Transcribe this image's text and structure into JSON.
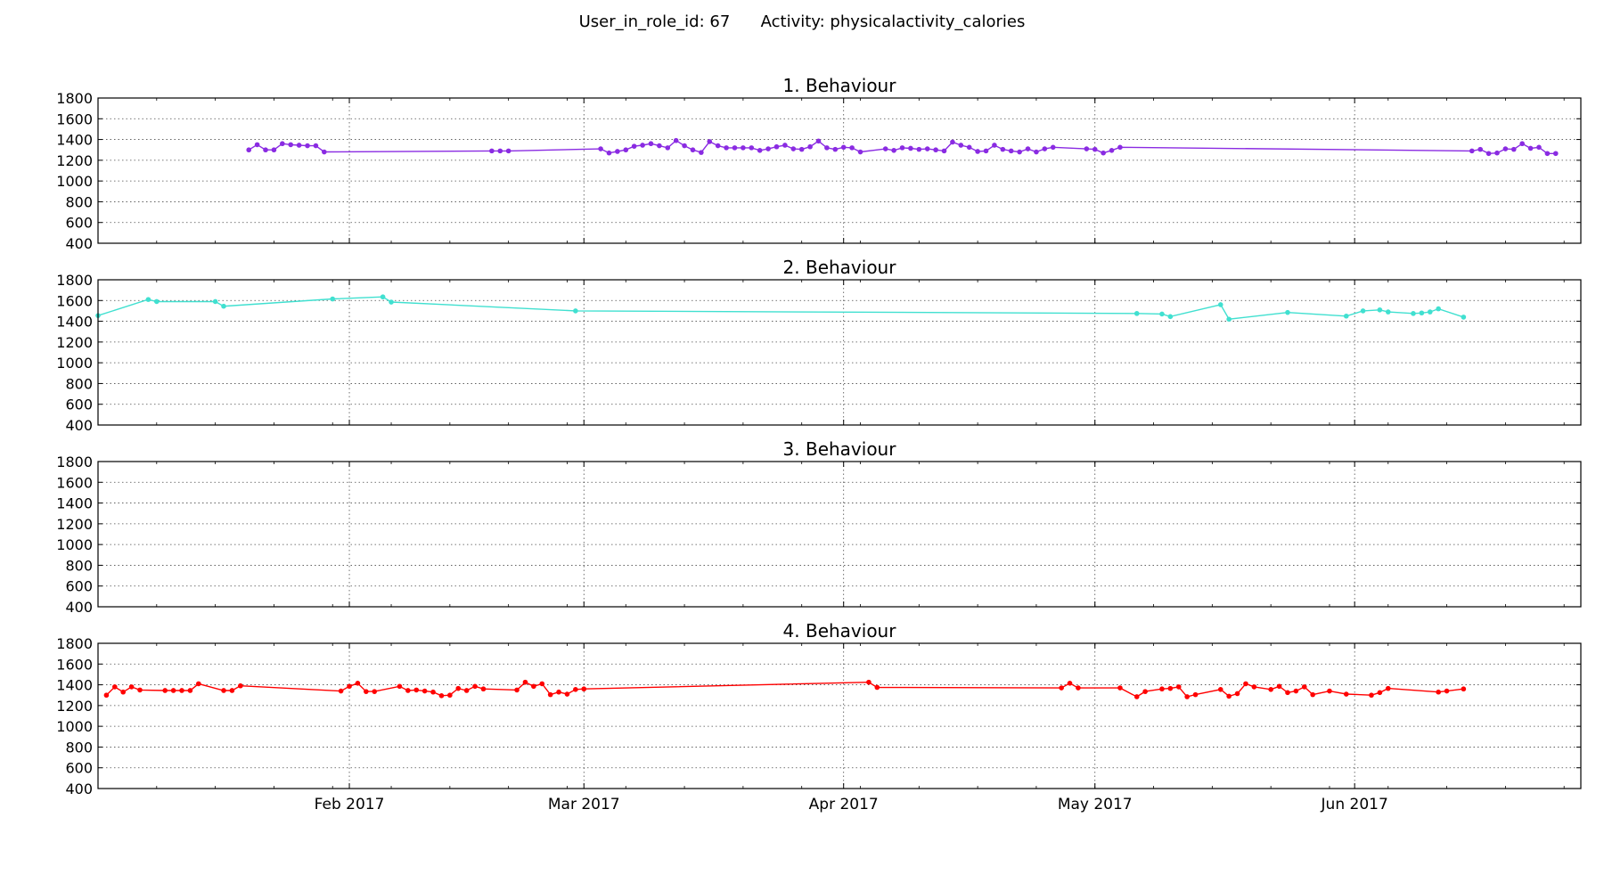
{
  "header": {
    "user_label": "User_in_role_id: 67",
    "activity_label": "Activity: physicalactivity_calories"
  },
  "chart_data": {
    "type": "line",
    "shared_x_axis": true,
    "x_tick_labels": [
      {
        "date": "2017-02-01",
        "label": "Feb 2017"
      },
      {
        "date": "2017-03-01",
        "label": "Mar 2017"
      },
      {
        "date": "2017-04-01",
        "label": "Apr 2017"
      },
      {
        "date": "2017-05-01",
        "label": "May 2017"
      },
      {
        "date": "2017-06-01",
        "label": "Jun 2017"
      }
    ],
    "xlim": [
      "2017-01-02",
      "2017-06-28"
    ],
    "ylim": [
      400,
      1800
    ],
    "y_ticks": [
      400,
      600,
      800,
      1000,
      1200,
      1400,
      1600,
      1800
    ],
    "grid": true,
    "panels": [
      {
        "title": "1. Behaviour",
        "color": "#8a2be2",
        "points": [
          [
            "2017-01-20",
            1300
          ],
          [
            "2017-01-21",
            1350
          ],
          [
            "2017-01-22",
            1300
          ],
          [
            "2017-01-23",
            1300
          ],
          [
            "2017-01-24",
            1360
          ],
          [
            "2017-01-25",
            1350
          ],
          [
            "2017-01-26",
            1345
          ],
          [
            "2017-01-27",
            1340
          ],
          [
            "2017-01-28",
            1340
          ],
          [
            "2017-01-29",
            1280
          ],
          [
            "2017-02-18",
            1290
          ],
          [
            "2017-02-19",
            1290
          ],
          [
            "2017-02-20",
            1290
          ],
          [
            "2017-03-03",
            1310
          ],
          [
            "2017-03-04",
            1270
          ],
          [
            "2017-03-05",
            1285
          ],
          [
            "2017-03-06",
            1300
          ],
          [
            "2017-03-07",
            1335
          ],
          [
            "2017-03-08",
            1345
          ],
          [
            "2017-03-09",
            1360
          ],
          [
            "2017-03-10",
            1340
          ],
          [
            "2017-03-11",
            1320
          ],
          [
            "2017-03-12",
            1390
          ],
          [
            "2017-03-13",
            1340
          ],
          [
            "2017-03-14",
            1300
          ],
          [
            "2017-03-15",
            1275
          ],
          [
            "2017-03-16",
            1380
          ],
          [
            "2017-03-17",
            1340
          ],
          [
            "2017-03-18",
            1320
          ],
          [
            "2017-03-19",
            1320
          ],
          [
            "2017-03-20",
            1320
          ],
          [
            "2017-03-21",
            1320
          ],
          [
            "2017-03-22",
            1295
          ],
          [
            "2017-03-23",
            1310
          ],
          [
            "2017-03-24",
            1330
          ],
          [
            "2017-03-25",
            1345
          ],
          [
            "2017-03-26",
            1310
          ],
          [
            "2017-03-27",
            1305
          ],
          [
            "2017-03-28",
            1330
          ],
          [
            "2017-03-29",
            1385
          ],
          [
            "2017-03-30",
            1320
          ],
          [
            "2017-03-31",
            1305
          ],
          [
            "2017-04-01",
            1325
          ],
          [
            "2017-04-02",
            1320
          ],
          [
            "2017-04-03",
            1280
          ],
          [
            "2017-04-06",
            1310
          ],
          [
            "2017-04-07",
            1295
          ],
          [
            "2017-04-08",
            1320
          ],
          [
            "2017-04-09",
            1315
          ],
          [
            "2017-04-10",
            1305
          ],
          [
            "2017-04-11",
            1310
          ],
          [
            "2017-04-12",
            1300
          ],
          [
            "2017-04-13",
            1290
          ],
          [
            "2017-04-14",
            1375
          ],
          [
            "2017-04-15",
            1345
          ],
          [
            "2017-04-16",
            1325
          ],
          [
            "2017-04-17",
            1285
          ],
          [
            "2017-04-18",
            1290
          ],
          [
            "2017-04-19",
            1345
          ],
          [
            "2017-04-20",
            1305
          ],
          [
            "2017-04-21",
            1290
          ],
          [
            "2017-04-22",
            1280
          ],
          [
            "2017-04-23",
            1310
          ],
          [
            "2017-04-24",
            1280
          ],
          [
            "2017-04-25",
            1310
          ],
          [
            "2017-04-26",
            1325
          ],
          [
            "2017-04-30",
            1310
          ],
          [
            "2017-05-01",
            1305
          ],
          [
            "2017-05-02",
            1270
          ],
          [
            "2017-05-03",
            1295
          ],
          [
            "2017-05-04",
            1325
          ],
          [
            "2017-06-15",
            1290
          ],
          [
            "2017-06-16",
            1305
          ],
          [
            "2017-06-17",
            1265
          ],
          [
            "2017-06-18",
            1270
          ],
          [
            "2017-06-19",
            1310
          ],
          [
            "2017-06-20",
            1305
          ],
          [
            "2017-06-21",
            1360
          ],
          [
            "2017-06-22",
            1315
          ],
          [
            "2017-06-23",
            1325
          ],
          [
            "2017-06-24",
            1265
          ],
          [
            "2017-06-25",
            1265
          ]
        ]
      },
      {
        "title": "2. Behaviour",
        "color": "#40e0d0",
        "points": [
          [
            "2017-01-02",
            1455
          ],
          [
            "2017-01-08",
            1610
          ],
          [
            "2017-01-09",
            1590
          ],
          [
            "2017-01-16",
            1590
          ],
          [
            "2017-01-17",
            1545
          ],
          [
            "2017-01-30",
            1615
          ],
          [
            "2017-02-05",
            1635
          ],
          [
            "2017-02-06",
            1585
          ],
          [
            "2017-02-28",
            1500
          ],
          [
            "2017-05-06",
            1475
          ],
          [
            "2017-05-09",
            1470
          ],
          [
            "2017-05-10",
            1445
          ],
          [
            "2017-05-16",
            1560
          ],
          [
            "2017-05-17",
            1420
          ],
          [
            "2017-05-24",
            1485
          ],
          [
            "2017-05-31",
            1450
          ],
          [
            "2017-06-02",
            1500
          ],
          [
            "2017-06-04",
            1510
          ],
          [
            "2017-06-05",
            1490
          ],
          [
            "2017-06-08",
            1475
          ],
          [
            "2017-06-09",
            1480
          ],
          [
            "2017-06-10",
            1490
          ],
          [
            "2017-06-11",
            1520
          ],
          [
            "2017-06-14",
            1440
          ]
        ]
      },
      {
        "title": "3. Behaviour",
        "color": "#7fff00",
        "points": []
      },
      {
        "title": "4. Behaviour",
        "color": "#ff0000",
        "points": [
          [
            "2017-01-03",
            1300
          ],
          [
            "2017-01-04",
            1380
          ],
          [
            "2017-01-05",
            1330
          ],
          [
            "2017-01-06",
            1380
          ],
          [
            "2017-01-07",
            1350
          ],
          [
            "2017-01-10",
            1345
          ],
          [
            "2017-01-11",
            1345
          ],
          [
            "2017-01-12",
            1345
          ],
          [
            "2017-01-13",
            1345
          ],
          [
            "2017-01-14",
            1410
          ],
          [
            "2017-01-17",
            1345
          ],
          [
            "2017-01-18",
            1345
          ],
          [
            "2017-01-19",
            1390
          ],
          [
            "2017-01-31",
            1340
          ],
          [
            "2017-02-01",
            1385
          ],
          [
            "2017-02-02",
            1415
          ],
          [
            "2017-02-03",
            1335
          ],
          [
            "2017-02-04",
            1335
          ],
          [
            "2017-02-07",
            1385
          ],
          [
            "2017-02-08",
            1345
          ],
          [
            "2017-02-09",
            1350
          ],
          [
            "2017-02-10",
            1340
          ],
          [
            "2017-02-11",
            1330
          ],
          [
            "2017-02-12",
            1295
          ],
          [
            "2017-02-13",
            1300
          ],
          [
            "2017-02-14",
            1365
          ],
          [
            "2017-02-15",
            1345
          ],
          [
            "2017-02-16",
            1385
          ],
          [
            "2017-02-17",
            1360
          ],
          [
            "2017-02-21",
            1350
          ],
          [
            "2017-02-22",
            1425
          ],
          [
            "2017-02-23",
            1385
          ],
          [
            "2017-02-24",
            1410
          ],
          [
            "2017-02-25",
            1305
          ],
          [
            "2017-02-26",
            1330
          ],
          [
            "2017-02-27",
            1310
          ],
          [
            "2017-02-28",
            1355
          ],
          [
            "2017-03-01",
            1360
          ],
          [
            "2017-04-04",
            1425
          ],
          [
            "2017-04-05",
            1375
          ],
          [
            "2017-04-27",
            1370
          ],
          [
            "2017-04-28",
            1415
          ],
          [
            "2017-04-29",
            1370
          ],
          [
            "2017-05-04",
            1370
          ],
          [
            "2017-05-06",
            1285
          ],
          [
            "2017-05-07",
            1335
          ],
          [
            "2017-05-09",
            1360
          ],
          [
            "2017-05-10",
            1365
          ],
          [
            "2017-05-11",
            1380
          ],
          [
            "2017-05-12",
            1285
          ],
          [
            "2017-05-13",
            1305
          ],
          [
            "2017-05-16",
            1355
          ],
          [
            "2017-05-17",
            1290
          ],
          [
            "2017-05-18",
            1315
          ],
          [
            "2017-05-19",
            1410
          ],
          [
            "2017-05-20",
            1380
          ],
          [
            "2017-05-22",
            1355
          ],
          [
            "2017-05-23",
            1385
          ],
          [
            "2017-05-24",
            1325
          ],
          [
            "2017-05-25",
            1340
          ],
          [
            "2017-05-26",
            1380
          ],
          [
            "2017-05-27",
            1305
          ],
          [
            "2017-05-29",
            1340
          ],
          [
            "2017-05-31",
            1310
          ],
          [
            "2017-06-03",
            1300
          ],
          [
            "2017-06-04",
            1325
          ],
          [
            "2017-06-05",
            1365
          ],
          [
            "2017-06-11",
            1330
          ],
          [
            "2017-06-12",
            1340
          ],
          [
            "2017-06-14",
            1360
          ]
        ]
      }
    ]
  }
}
